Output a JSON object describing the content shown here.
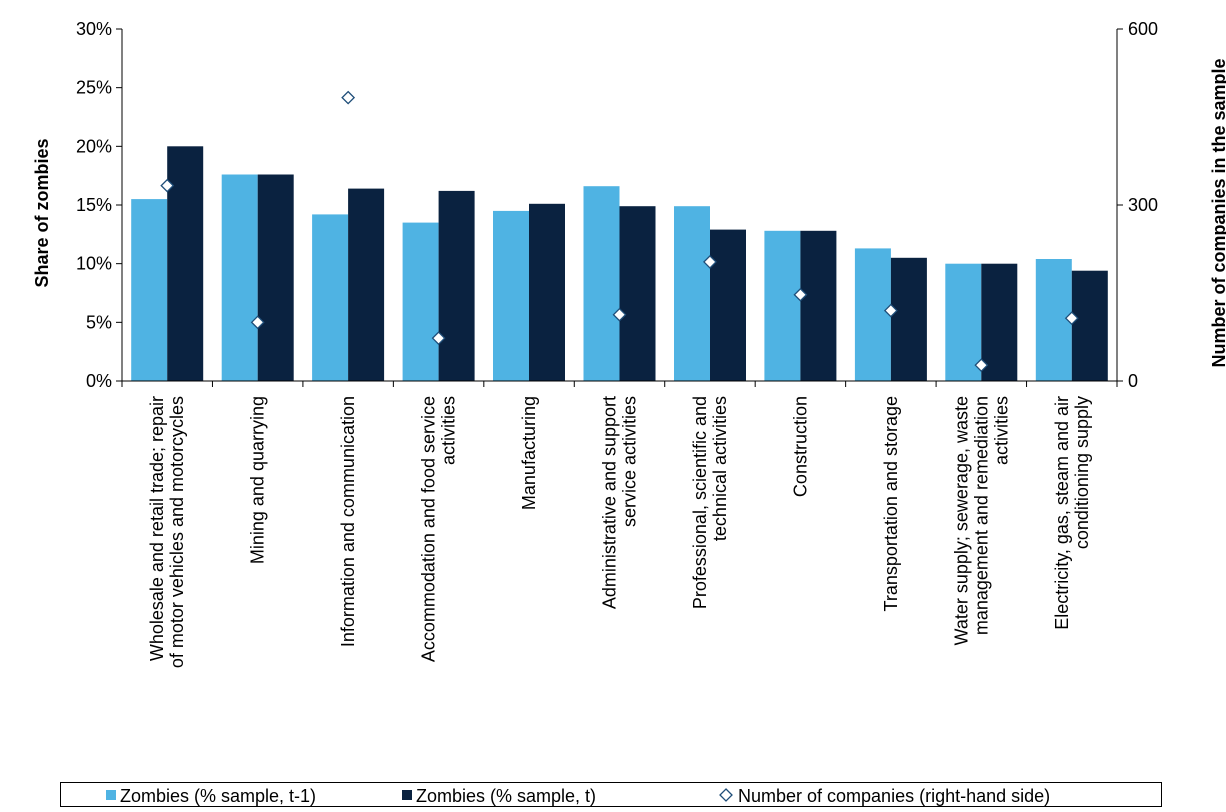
{
  "chart_data": {
    "type": "bar",
    "title": "",
    "ylabel_left": "Share of zombies",
    "ylabel_right": "Number of companies in the sample",
    "categories": [
      [
        "Wholesale and retail trade; repair",
        "of motor vehicles and motorcycles"
      ],
      [
        "Mining and quarrying"
      ],
      [
        "Information and communication"
      ],
      [
        "Accommodation and food service",
        "activities"
      ],
      [
        "Manufacturing"
      ],
      [
        "Administrative and support",
        "service activities"
      ],
      [
        "Professional, scientific and",
        "technical activities"
      ],
      [
        "Construction"
      ],
      [
        "Transportation and storage"
      ],
      [
        "Water supply; sewerage, waste",
        "management and remediation",
        "activities"
      ],
      [
        "Electricity, gas, steam and air",
        "conditioning supply"
      ]
    ],
    "series": [
      {
        "name": "Zombies (% sample, t-1)",
        "type": "bar",
        "axis": "left",
        "color": "#4fb3e3",
        "values": [
          15.5,
          17.6,
          14.2,
          13.5,
          14.5,
          16.6,
          14.9,
          12.8,
          11.3,
          10.0,
          10.4
        ]
      },
      {
        "name": "Zombies (% sample, t)",
        "type": "bar",
        "axis": "left",
        "color": "#0a2240",
        "values": [
          20.0,
          17.6,
          16.4,
          16.2,
          15.1,
          14.9,
          12.9,
          12.8,
          10.5,
          10.0,
          9.4
        ]
      },
      {
        "name": "Number of companies (right-hand side)",
        "type": "scatter",
        "axis": "right",
        "marker": "diamond",
        "color": "#ffffff",
        "stroke": "#1f4e79",
        "values": [
          333,
          100,
          483,
          73,
          null,
          113,
          203,
          147,
          120,
          27,
          107
        ]
      }
    ],
    "y_left": {
      "min": 0,
      "max": 30,
      "ticks": [
        0,
        5,
        10,
        15,
        20,
        25,
        30
      ],
      "tick_labels": [
        "0%",
        "5%",
        "10%",
        "15%",
        "20%",
        "25%",
        "30%"
      ]
    },
    "y_right": {
      "min": 0,
      "max": 600,
      "ticks": [
        0,
        300,
        600
      ],
      "tick_labels": [
        "0",
        "300",
        "600"
      ]
    },
    "grid": false,
    "legend_position": "bottom"
  }
}
